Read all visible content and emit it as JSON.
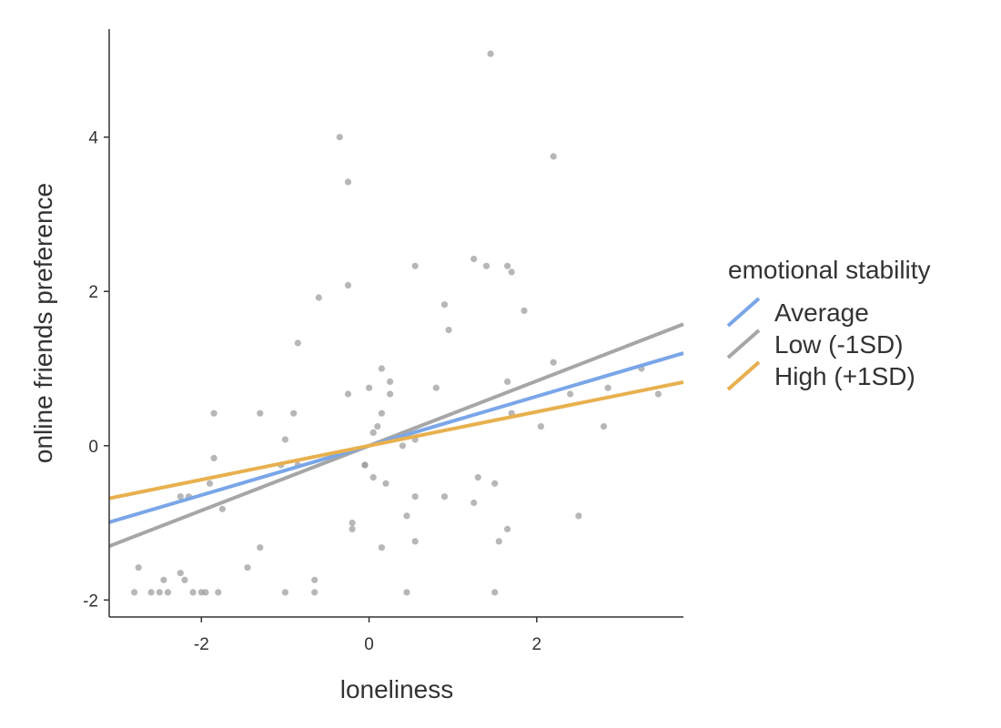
{
  "chart_data": {
    "type": "scatter",
    "xlabel": "loneliness",
    "ylabel": "online friends preference",
    "xlim": [
      -3.1,
      3.75
    ],
    "ylim": [
      -2.22,
      5.4
    ],
    "xticks": [
      -2,
      0,
      2
    ],
    "yticks": [
      -2,
      0,
      2,
      4
    ],
    "xtick_labels": [
      "-2",
      "0",
      "2"
    ],
    "ytick_labels": [
      "-2",
      "0",
      "2",
      "4"
    ],
    "grid": false,
    "legend": {
      "title": "emotional stability",
      "placement": "right"
    },
    "points": {
      "color": "#999999",
      "x": [
        -2.8,
        -2.75,
        -2.6,
        -2.5,
        -2.45,
        -2.4,
        -2.25,
        -2.25,
        -2.2,
        -2.15,
        -2.1,
        -2.0,
        -1.95,
        -1.9,
        -1.85,
        -1.85,
        -1.8,
        -1.75,
        -1.45,
        -1.3,
        -1.3,
        -1.05,
        -1.0,
        -1.0,
        -0.9,
        -0.85,
        -0.85,
        -0.65,
        -0.65,
        -0.6,
        -0.35,
        -0.25,
        -0.25,
        -0.25,
        -0.2,
        -0.2,
        -0.05,
        -0.05,
        0.0,
        0.05,
        0.05,
        0.1,
        0.15,
        0.15,
        0.15,
        0.2,
        0.25,
        0.25,
        0.4,
        0.45,
        0.45,
        0.55,
        0.55,
        0.55,
        0.55,
        0.8,
        0.9,
        0.9,
        0.95,
        1.25,
        1.25,
        1.3,
        1.4,
        1.45,
        1.5,
        1.5,
        1.55,
        1.65,
        1.65,
        1.65,
        1.7,
        1.7,
        1.85,
        2.05,
        2.2,
        2.2,
        2.4,
        2.5,
        2.8,
        2.85,
        3.25,
        3.45
      ],
      "y": [
        -1.9,
        -1.58,
        -1.9,
        -1.9,
        -1.74,
        -1.9,
        -1.65,
        -0.66,
        -1.74,
        -0.66,
        -1.9,
        -1.9,
        -1.9,
        -0.49,
        0.42,
        -0.16,
        -1.9,
        -0.82,
        -1.58,
        -1.32,
        0.42,
        -0.25,
        0.08,
        -1.9,
        0.42,
        1.33,
        -0.25,
        -1.74,
        -1.9,
        1.92,
        4.0,
        3.42,
        0.67,
        2.08,
        -1.0,
        -1.08,
        -0.25,
        -0.25,
        0.75,
        0.17,
        -0.41,
        0.25,
        1.0,
        0.42,
        -1.32,
        -0.49,
        0.83,
        0.67,
        0.0,
        -0.91,
        -1.9,
        2.33,
        -0.66,
        0.08,
        -1.24,
        0.75,
        1.83,
        -0.66,
        1.5,
        2.42,
        -0.74,
        -0.41,
        2.33,
        5.08,
        -0.49,
        -1.9,
        -1.24,
        2.33,
        0.83,
        -1.08,
        2.25,
        0.42,
        1.75,
        0.25,
        3.75,
        1.08,
        0.67,
        -0.91,
        0.25,
        0.75,
        1.0,
        0.67
      ]
    },
    "series": [
      {
        "name": "Average",
        "color": "#7AA6E8",
        "intercept": 0,
        "slope": 0.32
      },
      {
        "name": "Low (-1SD)",
        "color": "#A6A6A6",
        "intercept": 0,
        "slope": 0.42
      },
      {
        "name": "High (+1SD)",
        "color": "#E8B04E",
        "intercept": 0,
        "slope": 0.22
      }
    ]
  }
}
